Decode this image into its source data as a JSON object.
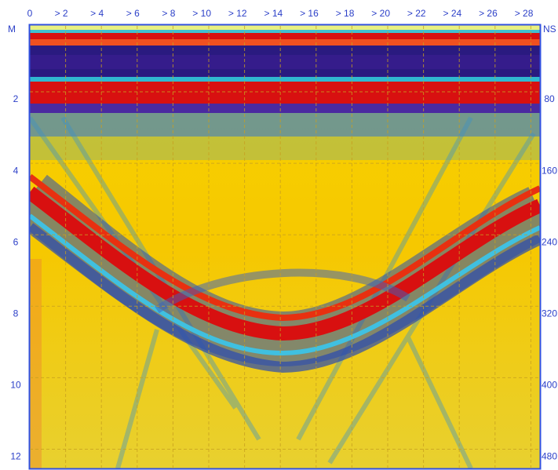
{
  "top_axis": {
    "labels": [
      "0",
      "> 2",
      "> 4",
      "> 6",
      "> 8",
      "> 10",
      "> 12",
      "> 14",
      "> 16",
      "> 18",
      "> 20",
      "> 22",
      "> 24",
      "> 26",
      "> 28"
    ]
  },
  "left_axis": {
    "unit": "M",
    "labels": [
      "2",
      "4",
      "6",
      "8",
      "10",
      "12"
    ]
  },
  "right_axis": {
    "unit": "NS",
    "labels": [
      "80",
      "160",
      "240",
      "320",
      "400",
      "480"
    ]
  }
}
